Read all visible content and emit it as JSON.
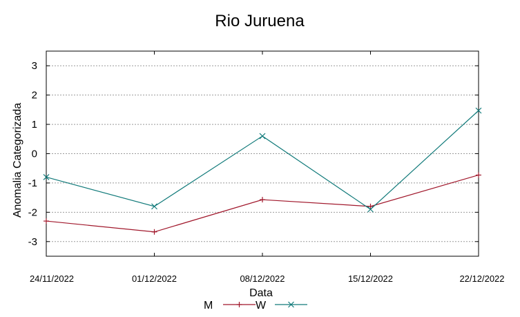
{
  "chart_data": {
    "type": "line",
    "title": "Rio Juruena",
    "xlabel": "Data",
    "ylabel": "Anomalia Categorizada",
    "categories": [
      "24/11/2022",
      "01/12/2022",
      "08/12/2022",
      "15/12/2022",
      "22/12/2022"
    ],
    "yticks": [
      3,
      2,
      1,
      0,
      -1,
      -2,
      -3
    ],
    "ylim": [
      -3.5,
      3.5
    ],
    "grid": true,
    "legend_position": "bottom",
    "series": [
      {
        "name": "M",
        "color": "#a0162a",
        "marker": "plus",
        "values": [
          -2.3,
          -2.67,
          -1.57,
          -1.8,
          -0.73
        ]
      },
      {
        "name": "W",
        "color": "#117a7a",
        "marker": "cross",
        "values": [
          -0.8,
          -1.8,
          0.6,
          -1.9,
          1.47
        ]
      }
    ]
  }
}
